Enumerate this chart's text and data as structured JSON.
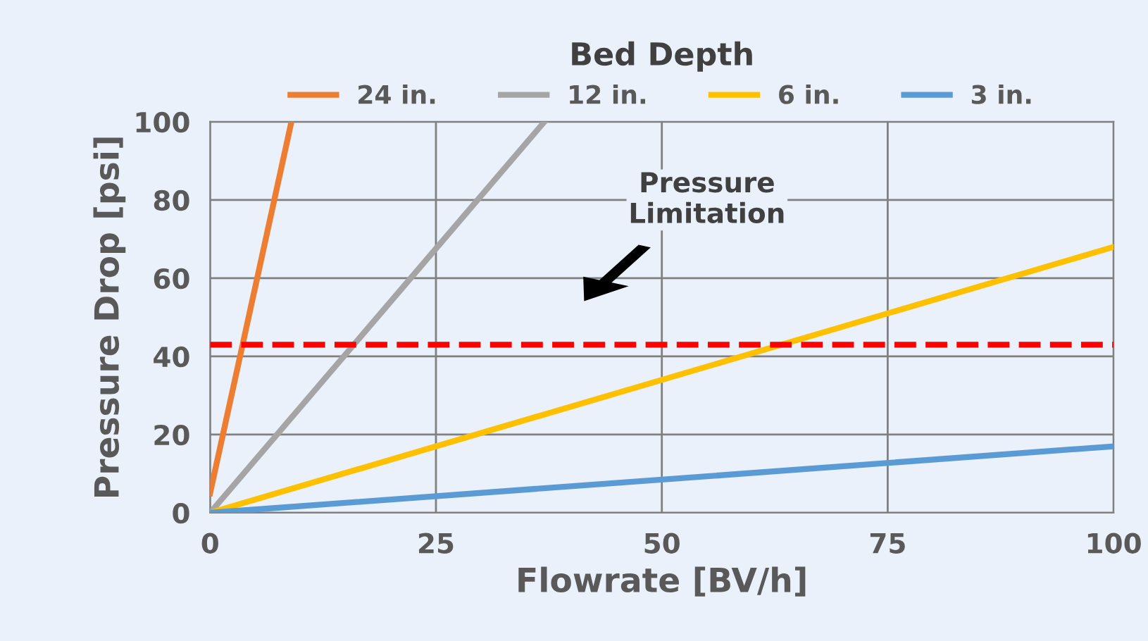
{
  "chart_data": {
    "type": "line",
    "xlabel": "Flowrate [BV/h]",
    "ylabel": "Pressure Drop [psi]",
    "legend_title": "Bed Depth",
    "series": [
      {
        "name": "24 in.",
        "color": "#ed7d31",
        "x": [
          0,
          9
        ],
        "values": [
          5,
          100
        ]
      },
      {
        "name": "12 in.",
        "color": "#a5a5a5",
        "x": [
          0,
          37
        ],
        "values": [
          0,
          100
        ]
      },
      {
        "name": "6 in.",
        "color": "#ffc000",
        "x": [
          0,
          100
        ],
        "values": [
          0,
          68
        ]
      },
      {
        "name": "3 in.",
        "color": "#5b9bd5",
        "x": [
          0,
          100
        ],
        "values": [
          0,
          17
        ]
      }
    ],
    "xlim": [
      0,
      100
    ],
    "xticks": [
      0,
      25,
      50,
      75,
      100
    ],
    "ylim": [
      0,
      100
    ],
    "yticks": [
      0,
      20,
      40,
      60,
      80,
      100
    ],
    "ref_lines": [
      {
        "axis": "y",
        "value": 43,
        "color": "#ff0000",
        "line_style": "dashed"
      }
    ],
    "annotations": [
      "Pressure\nLimitation"
    ],
    "grid": true,
    "legend": "top",
    "marker": "none",
    "line_style": "solid"
  }
}
